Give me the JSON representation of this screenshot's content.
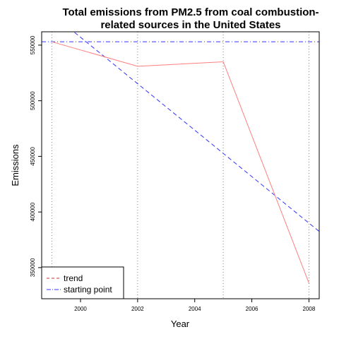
{
  "chart_data": {
    "type": "line",
    "title": "Total emissions from PM2.5 from coal combustion-related sources in the United States",
    "title_lines": [
      "Total emissions from PM2.5 from coal combustion-",
      "related sources in the United States"
    ],
    "xlabel": "Year",
    "ylabel": "Emissions",
    "xlim": [
      1998.64,
      2008.36
    ],
    "ylim": [
      322000,
      562000
    ],
    "x_ticks": [
      2000,
      2002,
      2004,
      2006,
      2008
    ],
    "y_ticks": [
      350000,
      400000,
      450000,
      500000,
      550000
    ],
    "grid": false,
    "series": [
      {
        "role": "data",
        "color": "#ff7f7f",
        "style": "solid",
        "x": [
          1999,
          2002,
          2005,
          2008
        ],
        "y": [
          553000,
          531000,
          535000,
          336000
        ]
      }
    ],
    "vertical_lines": {
      "x": [
        1999,
        2002,
        2005,
        2008
      ],
      "color": "#888888",
      "style": "dotted"
    },
    "trend_line": {
      "name": "trend",
      "color": "#3333ff",
      "style": "dashed",
      "x": [
        1998.64,
        2008.36
      ],
      "y": [
        585500,
        382500
      ]
    },
    "reference_line": {
      "name": "starting point",
      "color": "#3333ff",
      "style": "dashdot",
      "y": 553000
    },
    "legend": {
      "placement": "bottom-left",
      "entries": [
        {
          "label": "trend",
          "color": "#cc3333",
          "style": "dashed"
        },
        {
          "label": "starting point",
          "color": "#3333ff",
          "style": "dashdot"
        }
      ]
    }
  }
}
